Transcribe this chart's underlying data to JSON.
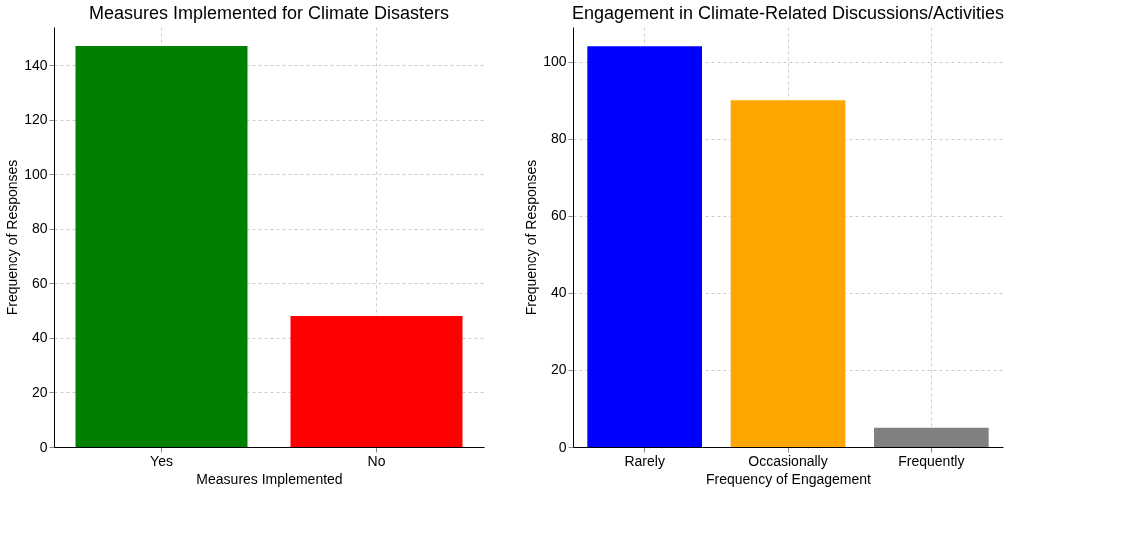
{
  "chart_data": [
    {
      "type": "bar",
      "title": "Measures Implemented for Climate Disasters",
      "xlabel": "Measures Implemented",
      "ylabel": "Frequency of Responses",
      "categories": [
        "Yes",
        "No"
      ],
      "values": [
        147,
        48
      ],
      "colors": [
        "#008000",
        "#ff0000"
      ],
      "ylim": [
        0,
        154
      ],
      "yticks": [
        0,
        20,
        40,
        60,
        80,
        100,
        120,
        140
      ],
      "grid": true,
      "legend": false
    },
    {
      "type": "bar",
      "title": "Engagement in Climate-Related Discussions/Activities",
      "xlabel": "Frequency of Engagement",
      "ylabel": "Frequency of Responses",
      "categories": [
        "Rarely",
        "Occasionally",
        "Frequently"
      ],
      "values": [
        104,
        90,
        5
      ],
      "colors": [
        "#0000ff",
        "#ffa500",
        "#808080"
      ],
      "ylim": [
        0,
        109
      ],
      "yticks": [
        0,
        20,
        40,
        60,
        80,
        100
      ],
      "grid": true,
      "legend": false
    }
  ]
}
